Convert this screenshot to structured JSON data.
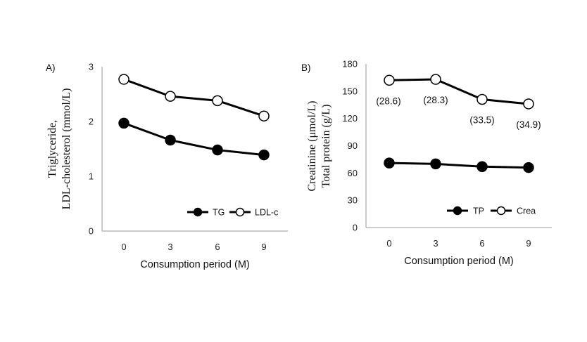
{
  "chart_data": [
    {
      "type": "line",
      "panel_label": "A)",
      "categories": [
        "0",
        "3",
        "6",
        "9"
      ],
      "xlabel": "Consumption period (M)",
      "ylabel_lines": [
        "Triglyceride,",
        "LDL-cholesterol (mmol/L)"
      ],
      "ylim": [
        0,
        3
      ],
      "yticks": [
        0,
        1,
        2,
        3
      ],
      "grid": false,
      "legend_position": "bottom-right",
      "series": [
        {
          "name": "TG",
          "marker": "filled",
          "values": [
            1.97,
            1.66,
            1.48,
            1.39
          ]
        },
        {
          "name": "LDL-c",
          "marker": "open",
          "values": [
            2.77,
            2.46,
            2.38,
            2.1
          ]
        }
      ]
    },
    {
      "type": "line",
      "panel_label": "B)",
      "categories": [
        "0",
        "3",
        "6",
        "9"
      ],
      "xlabel": "Consumption period (M)",
      "ylabel_lines": [
        "Creatinine (μmol/L)",
        "Total protein (g/L)"
      ],
      "ylim": [
        0,
        180
      ],
      "yticks": [
        0,
        30,
        60,
        90,
        120,
        150,
        180
      ],
      "grid": false,
      "legend_position": "bottom-right",
      "series": [
        {
          "name": "TP",
          "marker": "filled",
          "values": [
            71,
            70,
            67,
            66
          ]
        },
        {
          "name": "Crea",
          "marker": "open",
          "values": [
            162,
            163,
            141,
            136
          ],
          "labels": [
            "(28.6)",
            "(28.3)",
            "(33.5)",
            "(34.9)"
          ]
        }
      ]
    }
  ]
}
